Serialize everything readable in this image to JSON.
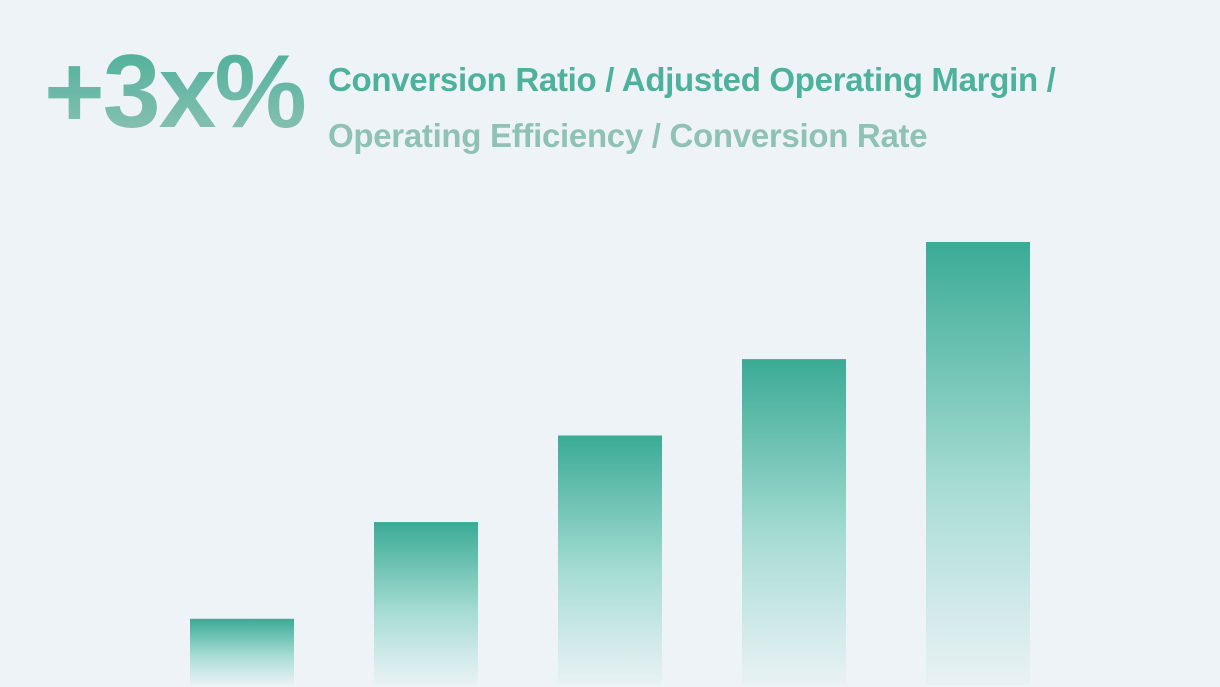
{
  "headline": {
    "value": "+3x%",
    "title_line1": "Conversion Ratio / Adjusted Operating Margin /",
    "title_line2": "Operating Efficiency / Conversion Rate"
  },
  "colors": {
    "background": "#eef3f7",
    "bar_top": "#3aab95",
    "bar_bottom": "#e8f1f4",
    "gridline": "#cfd6dc",
    "headline": "#4aaf98"
  },
  "chart_data": {
    "type": "bar",
    "title": "",
    "xlabel": "",
    "ylabel": "",
    "categories": [
      "",
      "",
      "",
      "",
      ""
    ],
    "values": [
      0.65,
      1.6,
      2.45,
      3.2,
      4.35
    ],
    "ylim": [
      0,
      4.35
    ],
    "grid": true,
    "gridlines": [
      1,
      2,
      3,
      4
    ],
    "legend": "none"
  }
}
